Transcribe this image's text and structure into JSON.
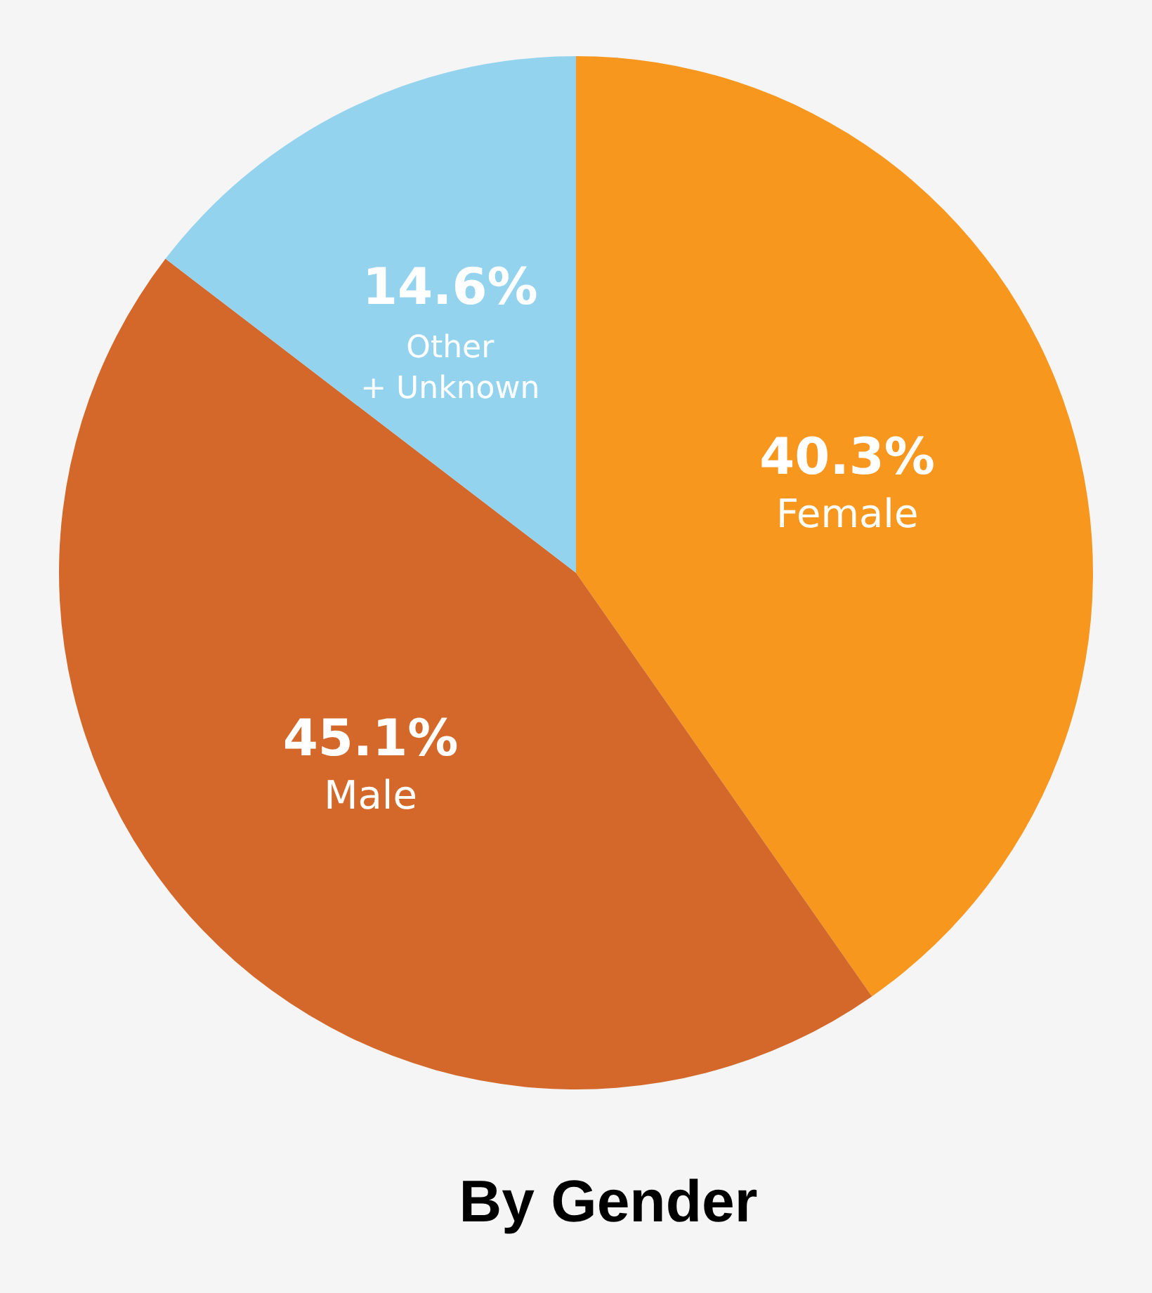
{
  "chart_data": {
    "type": "pie",
    "title": "By Gender",
    "categories": [
      "Female",
      "Male",
      "Other\n+ Unknown"
    ],
    "values": [
      40.3,
      45.1,
      14.6
    ],
    "colors": [
      "#f7971e",
      "#d4682a",
      "#93d3ee"
    ],
    "value_labels": [
      "40.3%",
      "45.1%",
      "14.6%"
    ]
  }
}
